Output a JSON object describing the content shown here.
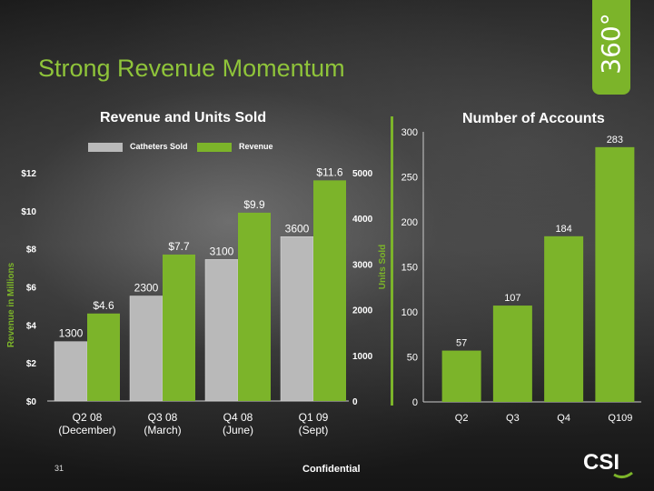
{
  "slide": {
    "title": "Strong Revenue Momentum",
    "page_number": "31",
    "footer": "Confidential",
    "logo_text": "360°",
    "company_logo_text": "CSI"
  },
  "colors": {
    "accent": "#7cb42a",
    "gray_bar": "#b9b9b9",
    "background": "#2b2b2b"
  },
  "chart_data": [
    {
      "type": "bar",
      "title": "Revenue and Units Sold",
      "categories": [
        "Q2 08\n(December)",
        "Q3 08\n(March)",
        "Q4 08\n(June)",
        "Q1 09\n(Sept)"
      ],
      "series": [
        {
          "name": "Catheters Sold",
          "axis": "right",
          "values": [
            1300,
            2300,
            3100,
            3600
          ],
          "labels": [
            "1300",
            "2300",
            "3100",
            "3600"
          ],
          "color": "#b9b9b9"
        },
        {
          "name": "Revenue",
          "axis": "left",
          "values": [
            4.6,
            7.7,
            9.9,
            11.6
          ],
          "labels": [
            "$4.6",
            "$7.7",
            "$9.9",
            "$11.6"
          ],
          "color": "#7cb42a"
        }
      ],
      "ylabel": "Revenue in Millions",
      "ylim": [
        0,
        12
      ],
      "y_ticks": [
        "$0",
        "$2",
        "$4",
        "$6",
        "$8",
        "$10",
        "$12"
      ],
      "y2label": "Units Sold",
      "y2lim": [
        0,
        5000
      ],
      "y2_ticks": [
        "0",
        "1000",
        "2000",
        "3000",
        "4000",
        "5000"
      ],
      "legend": "top"
    },
    {
      "type": "bar",
      "title": "Number of Accounts",
      "categories": [
        "Q2",
        "Q3",
        "Q4",
        "Q109"
      ],
      "values": [
        57,
        107,
        184,
        283
      ],
      "labels": [
        "57",
        "107",
        "184",
        "283"
      ],
      "ylim": [
        0,
        300
      ],
      "y_ticks": [
        "0",
        "50",
        "100",
        "150",
        "200",
        "250",
        "300"
      ],
      "color": "#7cb42a"
    }
  ]
}
